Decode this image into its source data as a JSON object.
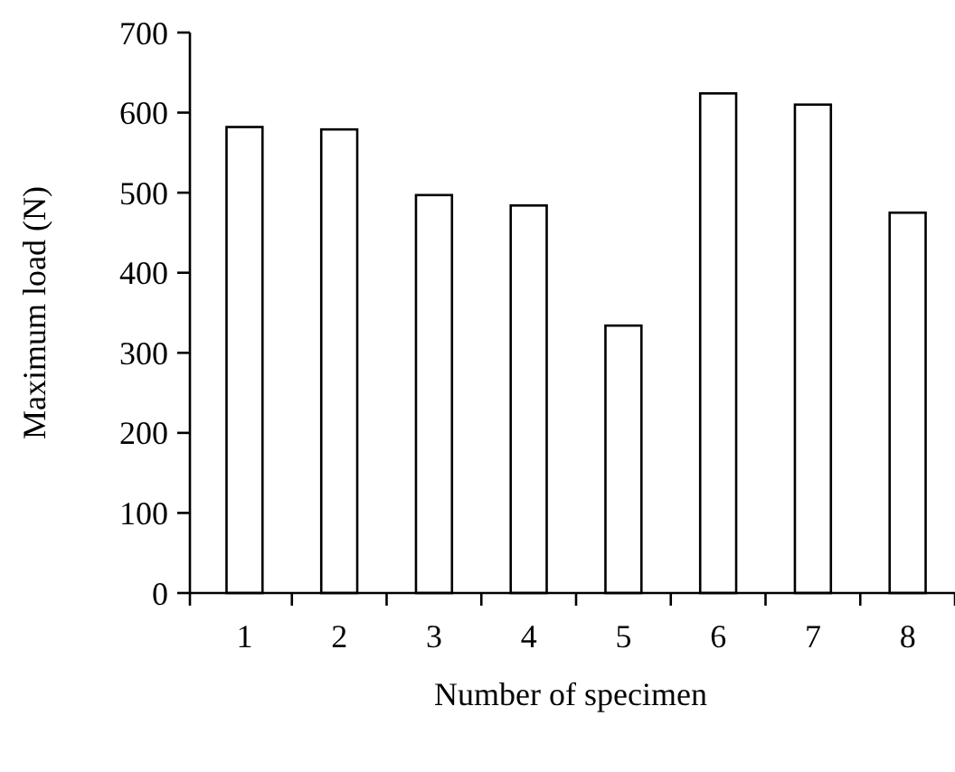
{
  "chart_data": {
    "type": "bar",
    "xlabel": "Number of specimen",
    "ylabel": "Maximum load (N)",
    "categories": [
      "1",
      "2",
      "3",
      "4",
      "5",
      "6",
      "7",
      "8"
    ],
    "values": [
      582,
      579,
      497,
      484,
      334,
      624,
      610,
      475
    ],
    "color": "#ffffff",
    "ylim": [
      0,
      700
    ],
    "yticks": [
      0,
      100,
      200,
      300,
      400,
      500,
      600,
      700
    ],
    "grid": false
  }
}
